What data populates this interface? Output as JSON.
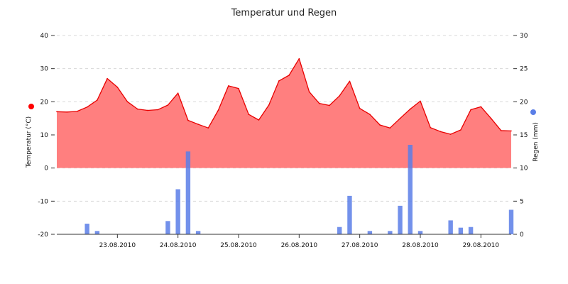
{
  "colors": {
    "temperature_fill": "#ff7f7f",
    "temperature_line": "#e80000",
    "rain_bar": "#5a7ee7",
    "legend_temp_dot": "#ff0000",
    "legend_rain_dot": "#5a7ee7",
    "grid": "#d7d7d7",
    "axis": "#333333"
  },
  "chart_data": {
    "type": "area",
    "title": "Temperatur und Regen",
    "grid": true,
    "x": [
      "22.08.2010 12:00",
      "22.08.2010 16:00",
      "22.08.2010 20:00",
      "23.08.2010 00:00",
      "23.08.2010 04:00",
      "23.08.2010 08:00",
      "23.08.2010 12:00",
      "23.08.2010 16:00",
      "23.08.2010 20:00",
      "24.08.2010 00:00",
      "24.08.2010 04:00",
      "24.08.2010 08:00",
      "24.08.2010 12:00",
      "24.08.2010 16:00",
      "24.08.2010 20:00",
      "25.08.2010 00:00",
      "25.08.2010 04:00",
      "25.08.2010 08:00",
      "25.08.2010 12:00",
      "25.08.2010 16:00",
      "25.08.2010 20:00",
      "26.08.2010 00:00",
      "26.08.2010 04:00",
      "26.08.2010 08:00",
      "26.08.2010 12:00",
      "26.08.2010 16:00",
      "26.08.2010 20:00",
      "27.08.2010 00:00",
      "27.08.2010 04:00",
      "27.08.2010 08:00",
      "27.08.2010 12:00",
      "27.08.2010 16:00",
      "27.08.2010 20:00",
      "28.08.2010 00:00",
      "28.08.2010 04:00",
      "28.08.2010 08:00",
      "28.08.2010 12:00",
      "28.08.2010 16:00",
      "28.08.2010 20:00",
      "29.08.2010 00:00",
      "29.08.2010 04:00",
      "29.08.2010 08:00",
      "29.08.2010 12:00",
      "29.08.2010 16:00",
      "29.08.2010 20:00",
      "30.08.2010 00:00"
    ],
    "x_ticks": [
      "23.08.2010",
      "24.08.2010",
      "25.08.2010",
      "26.08.2010",
      "27.08.2010",
      "28.08.2010",
      "29.08.2010"
    ],
    "axes": {
      "left": {
        "label": "Temperatur (°C)",
        "range": [
          -20,
          40
        ],
        "ticks": [
          -20,
          -10,
          0,
          10,
          20,
          30,
          40
        ]
      },
      "right": {
        "label": "Regen (mm)",
        "range": [
          0,
          30
        ],
        "ticks": [
          0,
          5,
          10,
          15,
          20,
          25,
          30
        ]
      }
    },
    "series": [
      {
        "name": "Temperatur",
        "type": "area",
        "axis": "left",
        "values": [
          17.0,
          16.9,
          17.1,
          18.4,
          20.5,
          27.0,
          24.4,
          20.0,
          17.8,
          17.4,
          17.6,
          19.0,
          22.6,
          14.4,
          13.2,
          12.1,
          17.5,
          24.8,
          24.0,
          16.2,
          14.5,
          19.0,
          26.3,
          28.0,
          33.0,
          23.0,
          19.5,
          18.9,
          21.8,
          26.2,
          18.0,
          16.2,
          13.0,
          12.1,
          15.0,
          17.8,
          20.2,
          12.2,
          11.0,
          10.2,
          11.5,
          17.6,
          18.5,
          15.0,
          11.3,
          11.2
        ]
      },
      {
        "name": "Regen",
        "type": "bar",
        "axis": "right",
        "values": [
          0.0,
          0.0,
          0.0,
          1.6,
          0.5,
          0.0,
          0.0,
          0.0,
          0.0,
          0.0,
          0.0,
          2.0,
          6.8,
          12.5,
          0.5,
          0.0,
          0.0,
          0.0,
          0.0,
          0.0,
          0.0,
          0.0,
          0.0,
          0.0,
          0.0,
          0.0,
          0.0,
          0.0,
          1.1,
          5.8,
          0.0,
          0.5,
          0.0,
          0.5,
          4.3,
          13.5,
          0.5,
          0.0,
          0.0,
          2.1,
          1.0,
          1.1,
          0.0,
          0.0,
          0.0,
          3.7
        ]
      }
    ]
  }
}
